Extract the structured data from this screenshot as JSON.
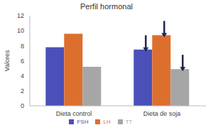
{
  "chart_data": {
    "type": "bar",
    "title": "Perfil hormonal",
    "y_label": "Valores",
    "categories": [
      "Dieta control",
      "Dieta de soja"
    ],
    "series": [
      {
        "name": "FSH",
        "color": "#4a50b8",
        "values": [
          7.8,
          7.5
        ]
      },
      {
        "name": "LH",
        "color": "#dd6f2e",
        "values": [
          9.6,
          9.4
        ]
      },
      {
        "name": "TT",
        "color": "#a6a6a6",
        "values": [
          5.2,
          4.9
        ]
      }
    ],
    "ylim": [
      0,
      12
    ],
    "yticks": [
      0,
      2,
      4,
      6,
      8,
      10,
      12
    ],
    "grid": false,
    "legend": "bottom"
  }
}
